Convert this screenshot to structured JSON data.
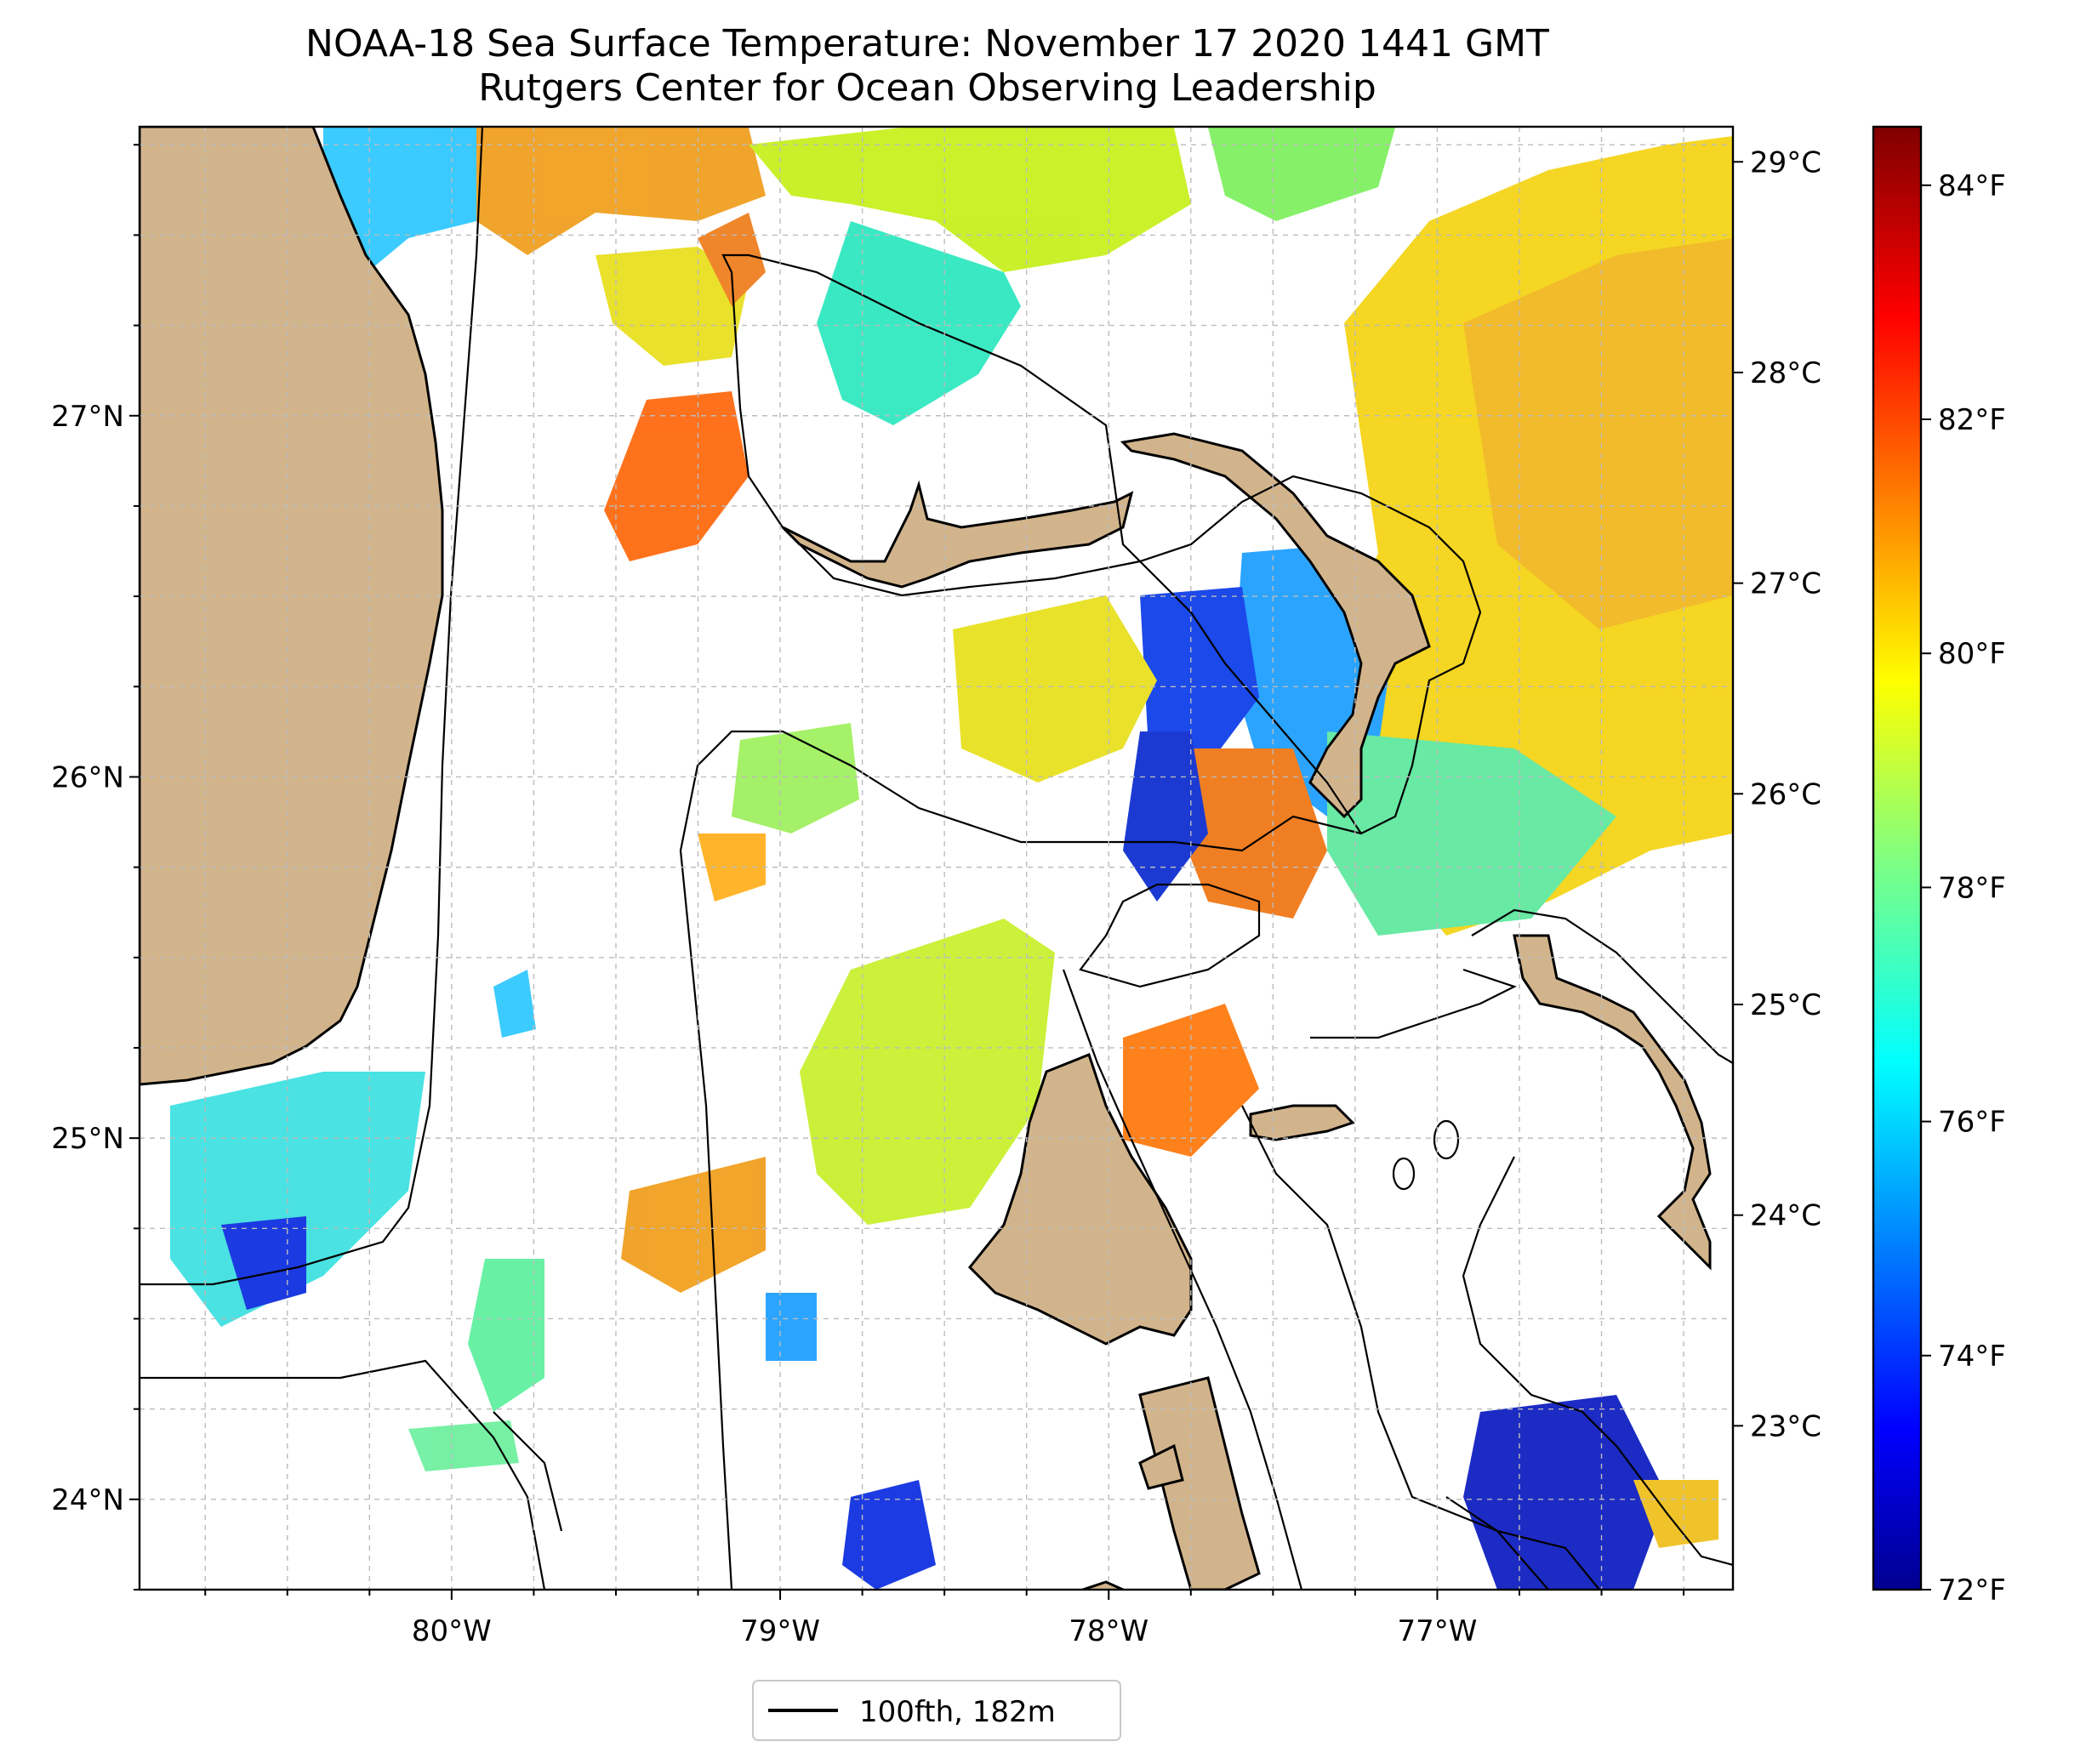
{
  "title": "NOAA-18 Sea Surface Temperature: November 17 2020 1441 GMT",
  "subtitle": "Rutgers Center for Ocean Observing Leadership",
  "map": {
    "lon_ticks": [
      {
        "lon": -80,
        "label": "80°W"
      },
      {
        "lon": -79,
        "label": "79°W"
      },
      {
        "lon": -78,
        "label": "78°W"
      },
      {
        "lon": -77,
        "label": "77°W"
      }
    ],
    "lat_ticks": [
      {
        "lat": 27,
        "label": "27°N"
      },
      {
        "lat": 26,
        "label": "26°N"
      },
      {
        "lat": 25,
        "label": "25°N"
      },
      {
        "lat": 24,
        "label": "24°N"
      }
    ],
    "extent": {
      "lon_min": -80.95,
      "lon_max": -76.1,
      "lat_min": 23.75,
      "lat_max": 27.8
    },
    "celsius_ticks": [
      {
        "value": 29,
        "label": "29°C"
      },
      {
        "value": 28,
        "label": "28°C"
      },
      {
        "value": 27,
        "label": "27°C"
      },
      {
        "value": 26,
        "label": "26°C"
      },
      {
        "value": 25,
        "label": "25°C"
      },
      {
        "value": 24,
        "label": "24°C"
      },
      {
        "value": 23,
        "label": "23°C"
      }
    ],
    "land_color": "#D2B48C",
    "contour_color": "#000000"
  },
  "colorbar": {
    "min_f": 72,
    "max_f": 84.5,
    "ticks": [
      {
        "value": 84,
        "label": "84°F"
      },
      {
        "value": 82,
        "label": "82°F"
      },
      {
        "value": 80,
        "label": "80°F"
      },
      {
        "value": 78,
        "label": "78°F"
      },
      {
        "value": 76,
        "label": "76°F"
      },
      {
        "value": 74,
        "label": "74°F"
      },
      {
        "value": 72,
        "label": "72°F"
      }
    ],
    "colormap": "jet"
  },
  "legend": {
    "label": "100fth, 182m"
  }
}
